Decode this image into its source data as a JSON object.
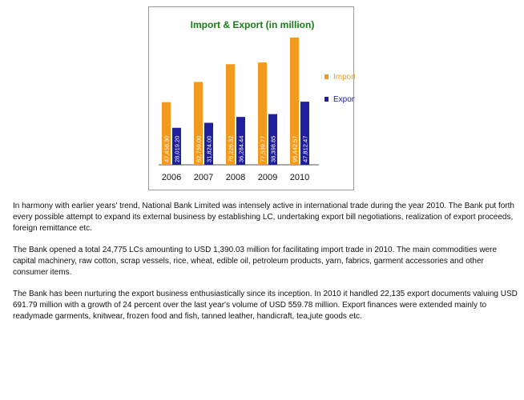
{
  "paragraphs": [
    "In harmony with earlier years' trend, National Bank Limited was intensely active in international trade during the year 2010. The Bank put forth every possible attempt to expand its external business by establishing LC, undertaking export bill negotiations, realization of export proceeds, foreign remittance etc.",
    "The Bank opened a total 24,775 LCs amounting to USD 1,390.03 million for facilitating import trade in 2010. The main commodities were capital machinery, raw cotton, scrap vessels, rice, wheat, edible oil, petroleum products, yarn, fabrics, garment accessories and other consumer items.",
    "The Bank has been nurturing the export business enthusiastically since its inception. In 2010 it handled 22,135 export documents valuing USD 691.79 million with a growth of 24 percent over the last year's volume of USD 559.78 million. Export finances were extended mainly to readymade garments, knitwear, frozen food and fish, tanned leather, handicraft, tea,jute goods etc."
  ],
  "chart_data": {
    "type": "bar",
    "title": "Import & Export  (in million)",
    "categories": [
      "2006",
      "2007",
      "2008",
      "2009",
      "2010"
    ],
    "series": [
      {
        "name": "Import",
        "color": "#f39a1e",
        "values": [
          47458.3,
          62759.0,
          76226.32,
          77539.77,
          96442.57
        ],
        "labels": [
          "47,458.30",
          "62,759.00",
          "76,226.32",
          "77,539.77",
          "96,442.57"
        ]
      },
      {
        "name": "Export",
        "color": "#1f1f9e",
        "values": [
          28019.2,
          31824.0,
          36284.44,
          38398.85,
          47812.47
        ],
        "labels": [
          "28,019.20",
          "31,824.00",
          "36,284.44",
          "38,398.85",
          "47,812.47"
        ]
      }
    ],
    "legend_position": "right",
    "title_color": "#1a7a1a",
    "grid": false
  }
}
